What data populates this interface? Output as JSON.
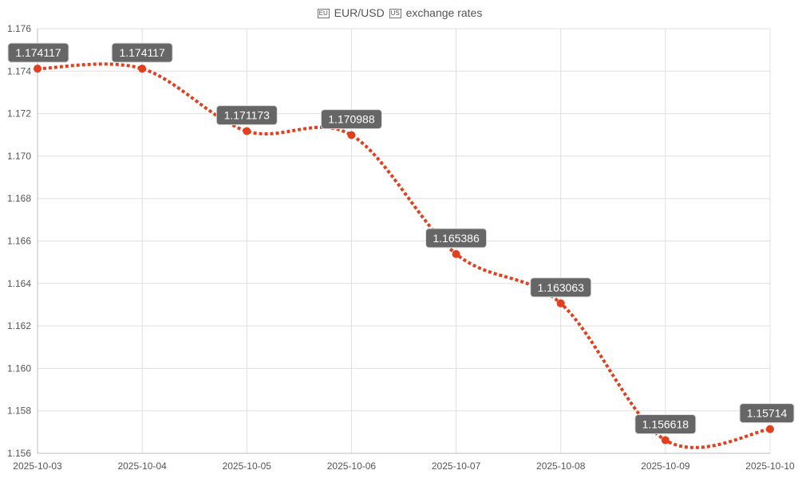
{
  "chart_data": {
    "type": "line",
    "title": "EUR/USD exchange rates",
    "title_parts": {
      "flag1": "EU",
      "pair": "EUR/USD",
      "flag2": "US",
      "suffix": "exchange rates"
    },
    "categories": [
      "2025-10-03",
      "2025-10-04",
      "2025-10-05",
      "2025-10-06",
      "2025-10-07",
      "2025-10-08",
      "2025-10-09",
      "2025-10-10"
    ],
    "values": [
      1.174117,
      1.174117,
      1.171173,
      1.170988,
      1.165386,
      1.163063,
      1.156618,
      1.15714
    ],
    "data_labels": [
      "1.174117",
      "1.174117",
      "1.171173",
      "1.170988",
      "1.165386",
      "1.163063",
      "1.156618",
      "1.15714"
    ],
    "yticks": [
      "1.156",
      "1.158",
      "1.160",
      "1.162",
      "1.164",
      "1.166",
      "1.168",
      "1.170",
      "1.172",
      "1.174",
      "1.176"
    ],
    "ylim": [
      1.156,
      1.176
    ],
    "xlabel": "",
    "ylabel": "",
    "grid": true,
    "line_color": "#e0401f",
    "label_bg": "#666666"
  }
}
